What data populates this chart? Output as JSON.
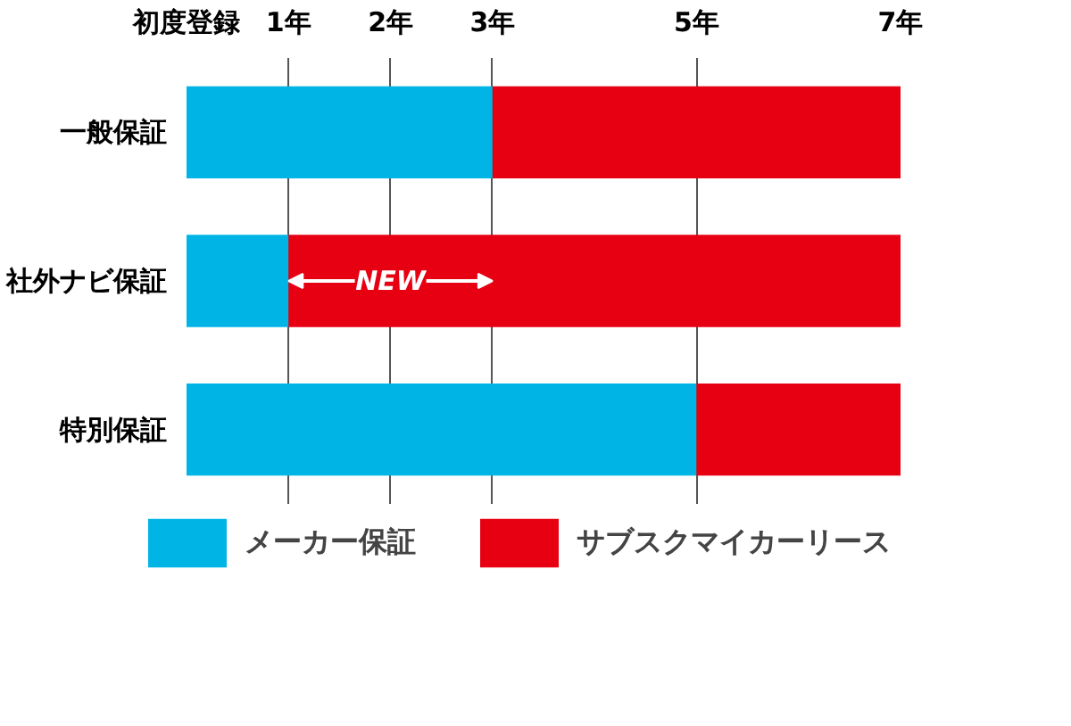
{
  "chart_data": {
    "type": "bar",
    "orientation": "horizontal",
    "stacked": true,
    "categories": [
      "一般保証",
      "社外ナビ保証",
      "特別保証"
    ],
    "series": [
      {
        "name": "メーカー保証",
        "color": "#00b4e6",
        "values": [
          3,
          1,
          5
        ]
      },
      {
        "name": "サブスクマイカーリース",
        "color": "#e60012",
        "values": [
          4,
          6,
          2
        ]
      }
    ],
    "xlim": [
      0,
      7
    ],
    "xticks": [
      {
        "value": 0,
        "label": "初度登録"
      },
      {
        "value": 1,
        "label": "1年"
      },
      {
        "value": 2,
        "label": "2年"
      },
      {
        "value": 3,
        "label": "3年"
      },
      {
        "value": 5,
        "label": "5年"
      },
      {
        "value": 7,
        "label": "7年"
      }
    ],
    "annotations": [
      {
        "text": "NEW",
        "x": 1,
        "y": "社外ナビ保証"
      }
    ],
    "grid": "x",
    "legend": "bottom"
  }
}
